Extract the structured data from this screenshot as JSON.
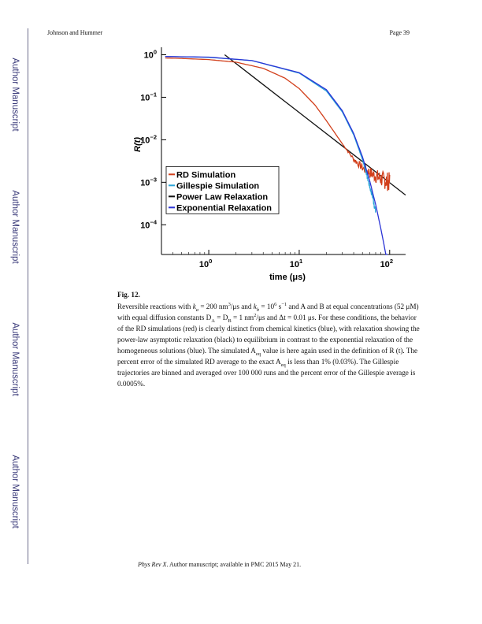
{
  "header": {
    "left": "Johnson and Hummer",
    "right": "Page 39"
  },
  "side_labels": [
    "Author Manuscript",
    "Author Manuscript",
    "Author Manuscript",
    "Author Manuscript"
  ],
  "figure": {
    "label": "Fig. 12."
  },
  "caption": {
    "part1": "Reversible reactions with ",
    "ka_sym": "k",
    "ka_sub": "a",
    "part2": " = 200 nm",
    "nm_sup": "3",
    "part3": "/μs and ",
    "kb_sym": "k",
    "kb_sub": "b",
    "part4": " = 10",
    "ten_sup": "6",
    "part5": " s",
    "s_sup": "−1",
    "part6": " and A and B at equal concentrations (52 μM) with equal diffusion constants D",
    "da_sub": "A",
    "part7": " = D",
    "db_sub": "B",
    "part8": " = 1 nm",
    "nm2_sup": "2",
    "part9": "/μs and Δt = 0.01 μs. For these conditions, the behavior of the RD simulations (red) is clearly distinct from chemical kinetics (blue), with relaxation showing the power-law asymptotic relaxation (black) to equilibrium in contrast to the exponential relaxation of the homogeneous solutions (blue). The simulated A",
    "aeq_sub": "eq",
    "part10": " value is here again used in the definition of R (t). The percent error of the simulated RD average to the exact A",
    "aeq2_sub": "eq",
    "part11": " is less than 1% (0.03%). The Gillespie trajectories are binned and averaged over 100 000 runs and the percent error of the Gillespie average is 0.0005%."
  },
  "footer": {
    "journal": "Phys Rev X",
    "text": ". Author manuscript; available in PMC 2015 May 21."
  },
  "chart_data": {
    "type": "line",
    "xlabel": "time (μs)",
    "ylabel": "R(t)",
    "x_scale": "log",
    "y_scale": "log",
    "xlim": [
      0.3,
      150
    ],
    "ylim": [
      2e-05,
      1.5
    ],
    "x_ticks": [
      {
        "value": 1,
        "base": "10",
        "exp": "0"
      },
      {
        "value": 10,
        "base": "10",
        "exp": "1"
      },
      {
        "value": 100,
        "base": "10",
        "exp": "2"
      }
    ],
    "y_ticks": [
      {
        "value": 1,
        "base": "10",
        "exp": "0"
      },
      {
        "value": 0.1,
        "base": "10",
        "exp": "−1"
      },
      {
        "value": 0.01,
        "base": "10",
        "exp": "−2"
      },
      {
        "value": 0.001,
        "base": "10",
        "exp": "−3"
      },
      {
        "value": 0.0001,
        "base": "10",
        "exp": "−4"
      }
    ],
    "legend_position": "lower-left",
    "series": [
      {
        "name": "RD Simulation",
        "color": "#d2401c",
        "x": [
          0.33,
          0.5,
          1,
          2,
          4,
          7,
          10,
          15,
          20,
          30,
          40,
          50,
          60,
          70,
          80,
          90,
          100
        ],
        "y": [
          0.84,
          0.82,
          0.77,
          0.67,
          0.48,
          0.28,
          0.16,
          0.065,
          0.028,
          0.008,
          0.0035,
          0.0022,
          0.0017,
          0.0014,
          0.0012,
          0.0011,
          0.001
        ]
      },
      {
        "name": "Gillespie Simulation",
        "color": "#2aa5d8",
        "x": [
          0.33,
          1,
          3,
          10,
          20,
          30,
          40,
          50,
          55,
          60,
          65,
          70
        ],
        "y": [
          0.91,
          0.87,
          0.73,
          0.37,
          0.14,
          0.045,
          0.013,
          0.0035,
          0.0017,
          0.0008,
          0.00045,
          0.0002
        ]
      },
      {
        "name": "Power Law Relaxation",
        "color": "#111111",
        "x": [
          1.5,
          150
        ],
        "y": [
          1,
          0.0005
        ]
      },
      {
        "name": "Exponential Relaxation",
        "color": "#2b34d6",
        "x": [
          0.33,
          1,
          3,
          10,
          20,
          30,
          40,
          50,
          60,
          70,
          80,
          90,
          95
        ],
        "y": [
          0.91,
          0.88,
          0.73,
          0.38,
          0.15,
          0.048,
          0.014,
          0.004,
          0.0011,
          0.0003,
          8e-05,
          2.2e-05,
          1.2e-05
        ]
      }
    ]
  }
}
